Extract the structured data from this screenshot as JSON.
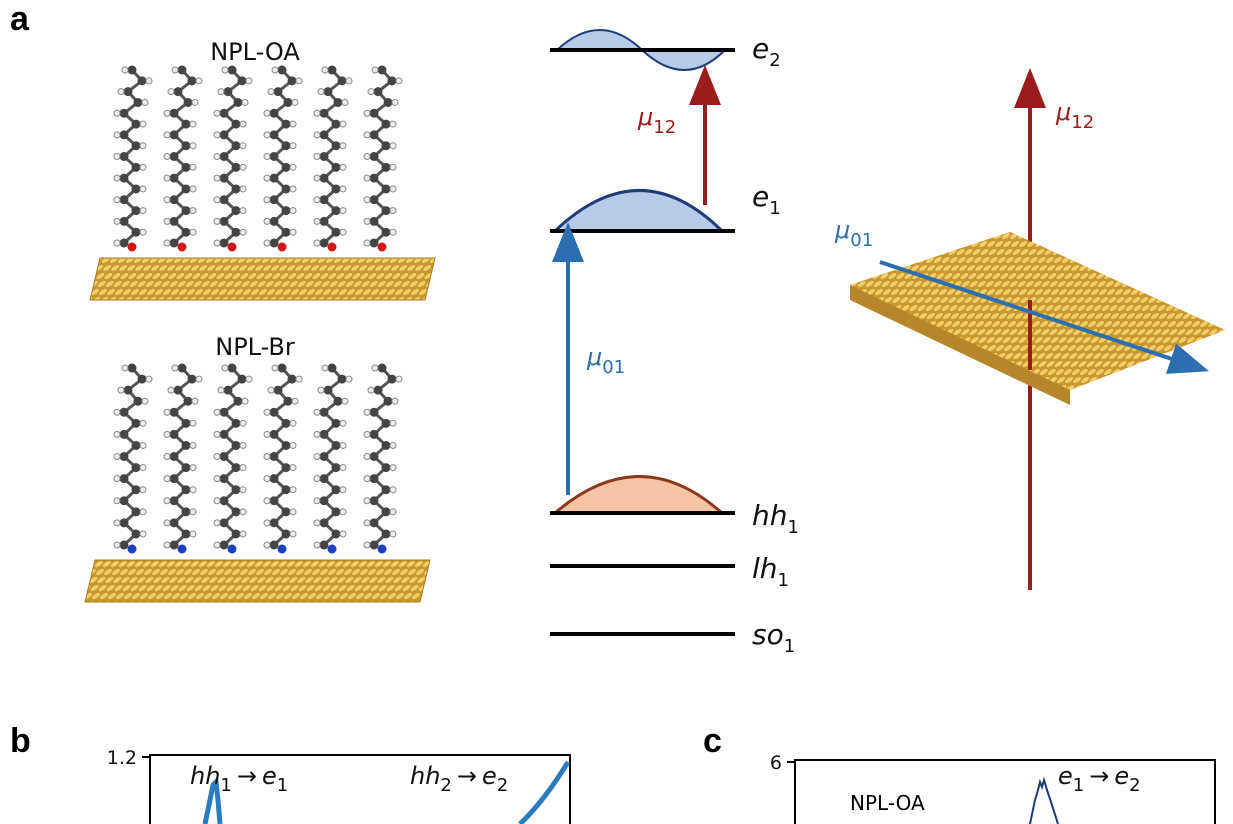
{
  "panel_a": {
    "label": "a",
    "molecules": [
      "NPL-OA",
      "NPL-Br"
    ],
    "levels": [
      {
        "symbol": "e",
        "subscript": "2"
      },
      {
        "symbol": "e",
        "subscript": "1"
      },
      {
        "symbol": "hh",
        "subscript": "1"
      },
      {
        "symbol": "lh",
        "subscript": "1"
      },
      {
        "symbol": "so",
        "subscript": "1"
      }
    ],
    "dipoles": [
      {
        "symbol": "μ",
        "subscript": "12"
      },
      {
        "symbol": "μ",
        "subscript": "01"
      }
    ]
  },
  "panel_b": {
    "label": "b",
    "ytick": "1.2",
    "transitions": [
      {
        "from": {
          "symbol": "hh",
          "subscript": "1"
        },
        "arrow": "→",
        "to": {
          "symbol": "e",
          "subscript": "1"
        }
      },
      {
        "from": {
          "symbol": "hh",
          "subscript": "2"
        },
        "arrow": "→",
        "to": {
          "symbol": "e",
          "subscript": "2"
        }
      }
    ]
  },
  "panel_c": {
    "label": "c",
    "ytick": "6",
    "sample": "NPL-OA",
    "transition": {
      "from": {
        "symbol": "e",
        "subscript": "1"
      },
      "arrow": "→",
      "to": {
        "symbol": "e",
        "subscript": "2"
      }
    }
  }
}
